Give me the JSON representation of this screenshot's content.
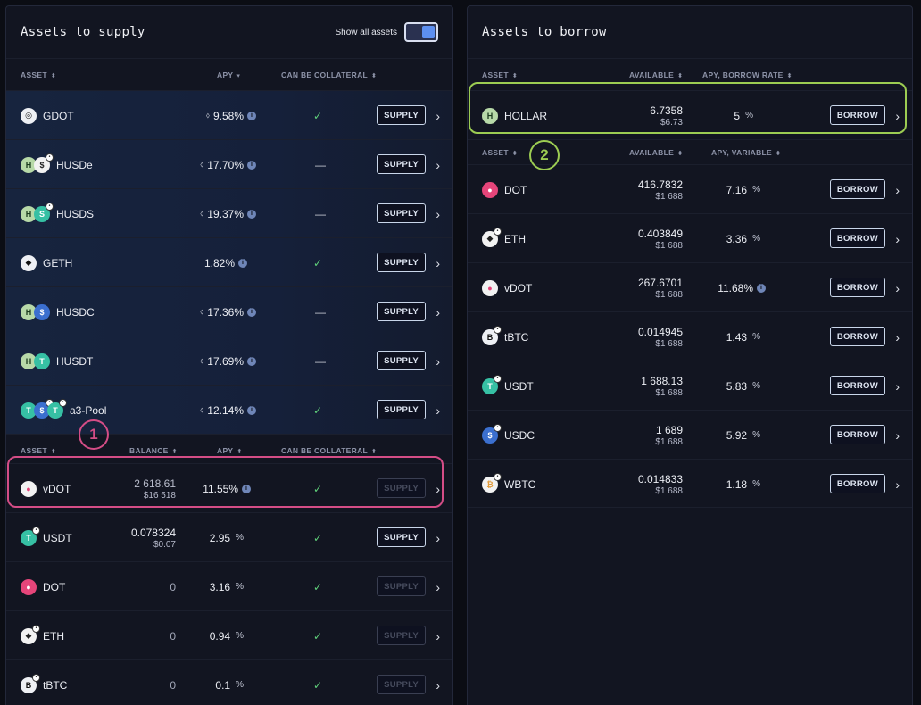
{
  "supply": {
    "title": "Assets to supply",
    "show_all_label": "Show all assets",
    "head1": {
      "asset": "ASSET",
      "apy": "APY",
      "collateral": "CAN BE COLLATERAL"
    },
    "rows1": [
      {
        "name": "GDOT",
        "apy": "9.58%",
        "coll": "check",
        "btn": "SUPPLY"
      },
      {
        "name": "HUSDe",
        "apy": "17.70%",
        "coll": "dash",
        "btn": "SUPPLY"
      },
      {
        "name": "HUSDS",
        "apy": "19.37%",
        "coll": "dash",
        "btn": "SUPPLY"
      },
      {
        "name": "GETH",
        "apy": "1.82%",
        "coll": "check",
        "btn": "SUPPLY"
      },
      {
        "name": "HUSDC",
        "apy": "17.36%",
        "coll": "dash",
        "btn": "SUPPLY"
      },
      {
        "name": "HUSDT",
        "apy": "17.69%",
        "coll": "dash",
        "btn": "SUPPLY"
      },
      {
        "name": "a3-Pool",
        "apy": "12.14%",
        "coll": "check",
        "btn": "SUPPLY"
      }
    ],
    "head2": {
      "asset": "ASSET",
      "balance": "BALANCE",
      "apy": "APY",
      "collateral": "CAN BE COLLATERAL"
    },
    "rows2": [
      {
        "name": "vDOT",
        "balance": "2 618.61",
        "usd": "$16 518",
        "apy": "11.55%",
        "coll": "check",
        "btn": "SUPPLY"
      },
      {
        "name": "USDT",
        "balance": "0.078324",
        "usd": "$0.07",
        "apy": "2.95",
        "coll": "check",
        "btn": "SUPPLY"
      },
      {
        "name": "DOT",
        "balance": "0",
        "usd": "",
        "apy": "3.16",
        "coll": "check",
        "btn": "SUPPLY"
      },
      {
        "name": "ETH",
        "balance": "0",
        "usd": "",
        "apy": "0.94",
        "coll": "check",
        "btn": "SUPPLY"
      },
      {
        "name": "tBTC",
        "balance": "0",
        "usd": "",
        "apy": "0.1",
        "coll": "check",
        "btn": "SUPPLY"
      }
    ]
  },
  "borrow": {
    "title": "Assets to borrow",
    "head1": {
      "asset": "ASSET",
      "available": "AVAILABLE",
      "rate": "APY, BORROW RATE"
    },
    "hollar": {
      "name": "HOLLAR",
      "available": "6.7358",
      "usd": "$6.73",
      "rate": "5",
      "btn": "BORROW"
    },
    "head2": {
      "asset": "ASSET",
      "available": "AVAILABLE",
      "rate": "APY, VARIABLE"
    },
    "rows": [
      {
        "name": "DOT",
        "available": "416.7832",
        "usd": "$1 688",
        "rate": "7.16",
        "btn": "BORROW"
      },
      {
        "name": "ETH",
        "available": "0.403849",
        "usd": "$1 688",
        "rate": "3.36",
        "btn": "BORROW"
      },
      {
        "name": "vDOT",
        "available": "267.6701",
        "usd": "$1 688",
        "rate": "11.68%",
        "btn": "BORROW"
      },
      {
        "name": "tBTC",
        "available": "0.014945",
        "usd": "$1 688",
        "rate": "1.43",
        "btn": "BORROW"
      },
      {
        "name": "USDT",
        "available": "1 688.13",
        "usd": "$1 688",
        "rate": "5.83",
        "btn": "BORROW"
      },
      {
        "name": "USDC",
        "available": "1 689",
        "usd": "$1 688",
        "rate": "5.92",
        "btn": "BORROW"
      },
      {
        "name": "WBTC",
        "available": "0.014833",
        "usd": "$1 688",
        "rate": "1.18",
        "btn": "BORROW"
      }
    ]
  },
  "pct_sign": "%",
  "info_glyph": "i",
  "annotations": {
    "one": "1",
    "two": "2"
  },
  "colors": {
    "accent": "#5d8ff0",
    "check": "#5fd07a",
    "anno_pink": "#d44d86",
    "anno_green": "#9ccc52"
  }
}
